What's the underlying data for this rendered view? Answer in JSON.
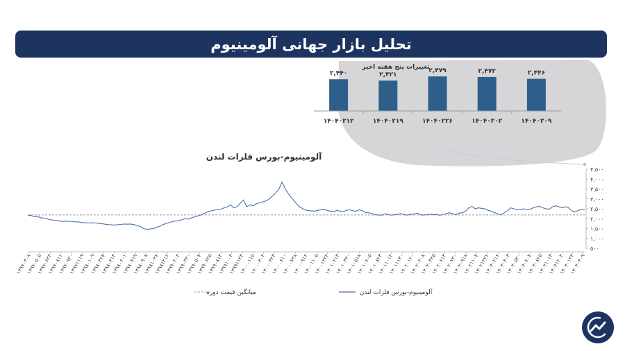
{
  "header": {
    "title": "تحلیل بازار جهانی آلومینیوم"
  },
  "colors": {
    "banner": "#1d3461",
    "bar": "#2e5f8a",
    "line": "#4a6fa5",
    "avg_line": "#9a9a9a",
    "bubble": "#d6d6d8"
  },
  "chart_data": [
    {
      "type": "bar",
      "title": "تغییرات پنج هفته اخیر",
      "categories": [
        "۱۴۰۴۰۲۱۲",
        "۱۴۰۴۰۲۱۹",
        "۱۴۰۴۰۲۲۶",
        "۱۴۰۴۰۳۰۲",
        "۱۴۰۴۰۳۰۹"
      ],
      "values": [
        2440,
        2421,
        2479,
        2472,
        2446
      ],
      "labels": [
        "۲,۴۴۰",
        "۲,۴۲۱",
        "۲,۴۷۹",
        "۲,۴۷۲",
        "۲,۴۴۶"
      ],
      "ylim": [
        2000,
        2500
      ]
    },
    {
      "type": "line",
      "title": "آلومینیوم-بورس فلزات لندن",
      "y_ticks": [
        500,
        1000,
        1500,
        2000,
        2500,
        3000,
        3500,
        4000,
        4500
      ],
      "y_tick_labels": [
        "۵۰۰",
        "۱,۰۰۰",
        "۱,۵۰۰",
        "۲,۰۰۰",
        "۲,۵۰۰",
        "۳,۰۰۰",
        "۳,۵۰۰",
        "۴,۰۰۰",
        "۴,۵۰۰"
      ],
      "ylim": [
        500,
        4500
      ],
      "y_axis_position": "right",
      "x_tick_labels": [
        "۱۳۹۷۰۳۰۸",
        "۱۳۹۷۰۵۰۵",
        "۱۳۹۷۰۶۲۳",
        "۱۳۹۷۰۸۱۱",
        "۱۳۹۷۰۹۳۰",
        "۱۳۹۷۱۱۱۹",
        "۱۳۹۸۰۱۰۹",
        "۱۳۹۸۰۲۲۷",
        "۱۳۹۸۰۴۱۴",
        "۱۳۹۸۰۶۰۱",
        "۱۳۹۸۰۷۱۹",
        "۱۳۹۸۰۹۰۸",
        "۱۳۹۸۱۰۲۶",
        "۱۳۹۸۱۲۱۶",
        "۱۳۹۹۰۲۰۲",
        "۱۳۹۹۰۳۲۰",
        "۱۳۹۹۰۵۰۷",
        "۱۳۹۹۰۶۲۵",
        "۱۳۹۹۰۸۱۴",
        "۱۳۹۹۱۰۰۳",
        "۱۳۹۹۱۱۲۲",
        "۱۴۰۰۰۱۱۵",
        "۱۴۰۰۰۳۰۴",
        "۱۴۰۰۰۴۲۳",
        "۱۴۰۰۰۶۱۰",
        "۱۴۰۰۰۷۲۸",
        "۱۴۰۰۰۹۱۶",
        "۱۴۰۰۱۱۰۵",
        "۱۴۰۰۱۲۲۴",
        "۱۴۰۱۰۲۱۳",
        "۱۴۰۱۰۳۳۰",
        "۱۴۰۱۰۵۱۸",
        "۱۴۰۱۰۷۰۵",
        "۱۴۰۱۰۸۲۳",
        "۱۴۰۱۱۰۱۲",
        "۱۴۰۱۱۱۳۰",
        "۱۴۰۲۰۱۲۰",
        "۱۴۰۲۰۳۰۸",
        "۱۴۰۲۰۴۲۵",
        "۱۴۰۲۰۶۱۲",
        "۱۴۰۲۰۷۳۰",
        "۱۴۰۲۰۹۱۸",
        "۱۴۰۲۱۱۰۷",
        "۱۴۰۲۱۲۲۶",
        "۱۴۰۳۰۲۱۶",
        "۱۴۰۳۰۴۰۳",
        "۱۴۰۳۰۵۲۰",
        "۱۴۰۳۰۷۰۷",
        "۱۴۰۳۰۸۲۵",
        "۱۴۰۳۱۰۱۳",
        "۱۴۰۳۱۲۰۲",
        "۱۴۰۴۰۱۲۳",
        "۱۴۰۴۰۳۰۹"
      ],
      "series": [
        {
          "name": "آلومینیوم-بورس فلزات لندن",
          "values": [
            2180,
            2160,
            2100,
            2110,
            2050,
            2030,
            1990,
            1950,
            1920,
            1900,
            1880,
            1860,
            1880,
            1870,
            1850,
            1840,
            1830,
            1800,
            1790,
            1780,
            1790,
            1780,
            1760,
            1750,
            1720,
            1700,
            1690,
            1680,
            1700,
            1710,
            1730,
            1720,
            1730,
            1700,
            1650,
            1600,
            1500,
            1460,
            1480,
            1500,
            1560,
            1620,
            1700,
            1760,
            1800,
            1860,
            1880,
            1900,
            1960,
            2000,
            1980,
            2050,
            2100,
            2150,
            2200,
            2280,
            2350,
            2400,
            2430,
            2470,
            2480,
            2550,
            2600,
            2700,
            2550,
            2600,
            2780,
            2950,
            2600,
            2700,
            2650,
            2750,
            2800,
            2850,
            2900,
            3000,
            3150,
            3300,
            3500,
            3850,
            3500,
            3250,
            3050,
            2850,
            2650,
            2550,
            2450,
            2420,
            2400,
            2380,
            2420,
            2450,
            2480,
            2420,
            2380,
            2350,
            2420,
            2380,
            2350,
            2430,
            2450,
            2400,
            2380,
            2450,
            2400,
            2300,
            2300,
            2250,
            2200,
            2180,
            2180,
            2250,
            2200,
            2180,
            2200,
            2230,
            2250,
            2200,
            2180,
            2230,
            2230,
            2280,
            2200,
            2180,
            2200,
            2230,
            2200,
            2210,
            2170,
            2220,
            2250,
            2300,
            2250,
            2200,
            2280,
            2300,
            2380,
            2550,
            2620,
            2500,
            2550,
            2520,
            2500,
            2420,
            2380,
            2300,
            2250,
            2200,
            2300,
            2400,
            2550,
            2500,
            2450,
            2470,
            2500,
            2450,
            2480,
            2550,
            2600,
            2620,
            2550,
            2500,
            2480,
            2600,
            2650,
            2600,
            2550,
            2600,
            2550,
            2400,
            2350,
            2420,
            2470,
            2450
          ]
        }
      ],
      "average": 2190
    }
  ],
  "legend": {
    "line_label": "آلومینیوم-بورس فلزات لندن",
    "avg_label": "میانگین قیمت دوره"
  }
}
